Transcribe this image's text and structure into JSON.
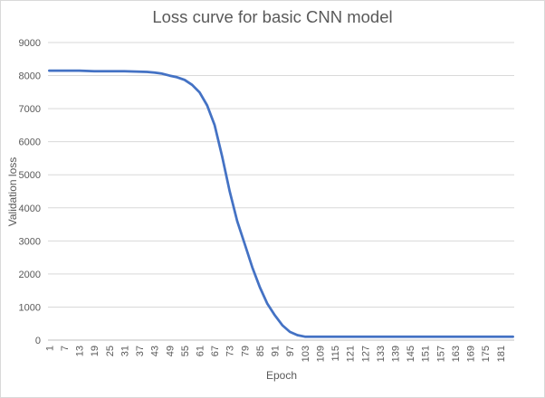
{
  "chart_data": {
    "type": "line",
    "title": "Loss curve for basic CNN model",
    "xlabel": "Epoch",
    "ylabel": "Validation loss",
    "ylim": [
      0,
      9000
    ],
    "y_ticks": [
      0,
      1000,
      2000,
      3000,
      4000,
      5000,
      6000,
      7000,
      8000,
      9000
    ],
    "x_range": [
      1,
      186
    ],
    "x_tick_labels": [
      1,
      7,
      13,
      19,
      25,
      31,
      37,
      43,
      49,
      55,
      61,
      67,
      73,
      79,
      85,
      91,
      97,
      103,
      109,
      115,
      121,
      127,
      133,
      139,
      145,
      151,
      157,
      163,
      169,
      175,
      181
    ],
    "grid": "horizontal",
    "legend": "none",
    "series": [
      {
        "color": "#4472c4",
        "points": [
          [
            1,
            8150
          ],
          [
            7,
            8150
          ],
          [
            13,
            8150
          ],
          [
            19,
            8130
          ],
          [
            25,
            8130
          ],
          [
            31,
            8130
          ],
          [
            37,
            8120
          ],
          [
            40,
            8110
          ],
          [
            43,
            8090
          ],
          [
            46,
            8060
          ],
          [
            49,
            8000
          ],
          [
            52,
            7950
          ],
          [
            55,
            7870
          ],
          [
            58,
            7720
          ],
          [
            61,
            7490
          ],
          [
            64,
            7100
          ],
          [
            67,
            6500
          ],
          [
            70,
            5550
          ],
          [
            73,
            4500
          ],
          [
            76,
            3600
          ],
          [
            79,
            2900
          ],
          [
            82,
            2200
          ],
          [
            85,
            1600
          ],
          [
            88,
            1100
          ],
          [
            91,
            750
          ],
          [
            94,
            450
          ],
          [
            97,
            250
          ],
          [
            100,
            150
          ],
          [
            103,
            105
          ],
          [
            106,
            100
          ],
          [
            115,
            100
          ],
          [
            130,
            100
          ],
          [
            145,
            100
          ],
          [
            160,
            100
          ],
          [
            175,
            100
          ],
          [
            186,
            100
          ]
        ]
      }
    ]
  }
}
